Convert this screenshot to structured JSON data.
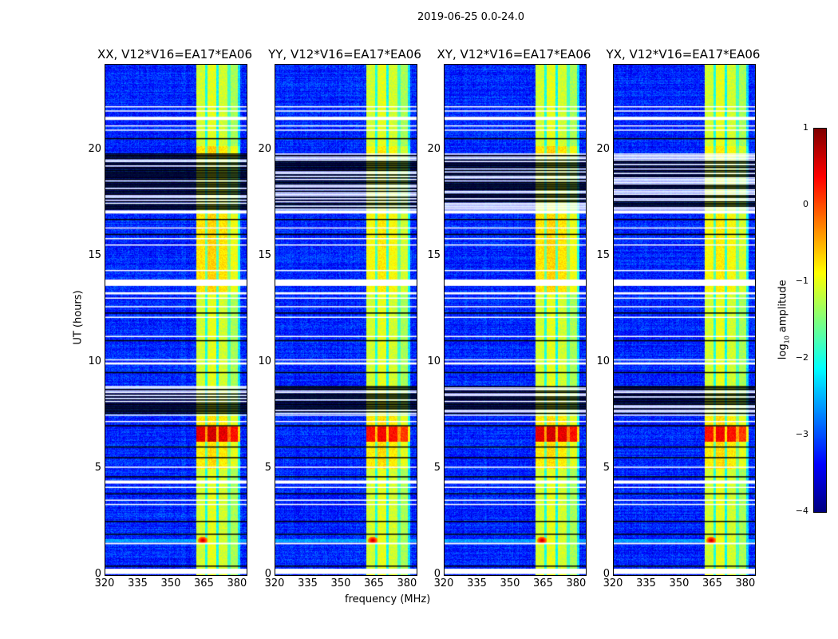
{
  "suptitle": "2019-06-25 0.0-24.0",
  "chart_data": {
    "type": "heatmap",
    "title": "2019-06-25 0.0-24.0",
    "xlabel": "frequency (MHz)",
    "ylabel": "UT (hours)",
    "xlim": [
      320,
      384
    ],
    "ylim": [
      0,
      24
    ],
    "xticks": [
      "320",
      "335",
      "350",
      "365",
      "380"
    ],
    "yticks": [
      "0",
      "5",
      "10",
      "15",
      "20"
    ],
    "panels": [
      {
        "title": "XX, V12*V16=EA17*EA06",
        "band_start": 361,
        "rfi_boost": 1.3
      },
      {
        "title": "YY, V12*V16=EA17*EA06",
        "band_start": 361,
        "rfi_boost": 1.1
      },
      {
        "title": "XY, V12*V16=EA17*EA06",
        "band_start": 361,
        "rfi_boost": 1.3
      },
      {
        "title": "YX, V12*V16=EA17*EA06",
        "band_start": 361,
        "rfi_boost": 1.1
      }
    ],
    "colorbar": {
      "label_prefix": "log",
      "label_sub": "10",
      "label_suffix": " amplitude",
      "range": [
        -4,
        1
      ],
      "ticks": [
        "1",
        "0",
        "−1",
        "−2",
        "−3",
        "−4"
      ],
      "colormap": "jet"
    },
    "flagged_white_hours": [
      [
        0.05,
        0.3
      ],
      [
        1.45,
        1.52
      ],
      [
        3.3,
        3.35
      ],
      [
        3.5,
        3.55
      ],
      [
        4.1,
        4.15
      ],
      [
        4.3,
        4.45
      ],
      [
        5.05,
        5.1
      ],
      [
        7.2,
        7.25
      ],
      [
        7.5,
        7.55
      ],
      [
        9.9,
        10.0
      ],
      [
        10.1,
        10.15
      ],
      [
        11.2,
        11.25
      ],
      [
        12.1,
        12.15
      ],
      [
        12.6,
        12.65
      ],
      [
        13.0,
        13.05
      ],
      [
        13.2,
        13.3
      ],
      [
        13.6,
        13.9
      ],
      [
        14.3,
        14.35
      ],
      [
        15.5,
        15.55
      ],
      [
        15.8,
        15.85
      ],
      [
        16.3,
        16.35
      ],
      [
        17.0,
        17.15
      ],
      [
        20.9,
        20.95
      ],
      [
        21.1,
        21.15
      ],
      [
        21.4,
        21.55
      ],
      [
        21.8,
        21.85
      ],
      [
        22.0,
        22.05
      ]
    ],
    "flagged_black_hours": [
      [
        0.4,
        0.45
      ],
      [
        1.9,
        1.95
      ],
      [
        2.5,
        2.55
      ],
      [
        3.8,
        3.85
      ],
      [
        4.6,
        4.65
      ],
      [
        5.5,
        5.55
      ],
      [
        6.0,
        6.05
      ],
      [
        7.0,
        7.05
      ],
      [
        9.5,
        9.55
      ],
      [
        11.0,
        11.05
      ],
      [
        12.3,
        12.35
      ],
      [
        16.0,
        16.05
      ],
      [
        16.7,
        16.75
      ],
      [
        20.5,
        20.55
      ]
    ],
    "dense_flag_hours": [
      [
        7.6,
        8.9
      ],
      [
        17.2,
        19.8
      ]
    ]
  }
}
